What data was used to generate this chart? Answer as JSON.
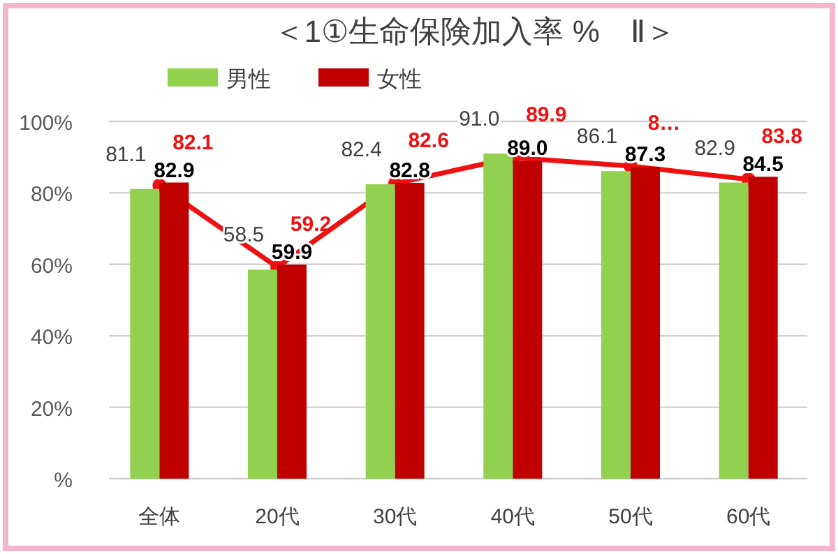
{
  "chart_data": {
    "type": "bar",
    "title": "＜1①生命保険加入率 %　Ⅱ＞",
    "categories": [
      "全体",
      "20代",
      "30代",
      "40代",
      "50代",
      "60代"
    ],
    "ylim": [
      0,
      100
    ],
    "yticks": [
      {
        "value": 0,
        "label": "%"
      },
      {
        "value": 20,
        "label": "20%"
      },
      {
        "value": 40,
        "label": "40%"
      },
      {
        "value": 60,
        "label": "60%"
      },
      {
        "value": 80,
        "label": "80%"
      },
      {
        "value": 100,
        "label": "100%"
      }
    ],
    "grid": "y",
    "legend": "top",
    "marker": "circle",
    "series": [
      {
        "name": "男性",
        "color": "#92d050",
        "values": [
          81.1,
          58.5,
          82.4,
          91.0,
          86.1,
          82.9
        ],
        "value_labels": [
          "81.1",
          "58.5",
          "82.4",
          "91.0",
          "86.1",
          "82.9"
        ]
      },
      {
        "name": "女性",
        "color": "#c00000",
        "values": [
          82.9,
          59.9,
          82.8,
          89.0,
          87.3,
          84.5
        ],
        "value_labels": [
          "82.9",
          "59.9",
          "82.8",
          "89.0",
          "87.3",
          "84.5"
        ]
      },
      {
        "type": "line",
        "color": "#ee1111",
        "values": [
          82.1,
          59.2,
          82.6,
          89.9,
          87.5,
          83.8
        ],
        "value_labels": [
          "82.1",
          "59.2",
          "82.6",
          "89.9",
          "8…",
          "83.8"
        ]
      }
    ]
  }
}
